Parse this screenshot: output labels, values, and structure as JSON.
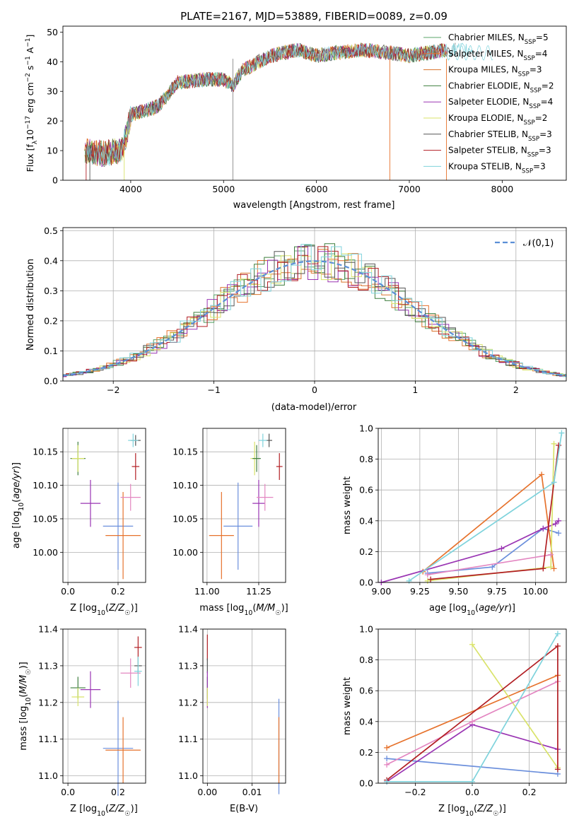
{
  "chart_data": [
    {
      "type": "line",
      "title": "PLATE=2167, MJD=53889, FIBERID=0089, z=0.09",
      "xlabel": "wavelength [Angstrom, rest frame]",
      "ylabel": "Flux [f_λ 10^-17 erg cm^-2 s^-1 A^-1]",
      "xlim": [
        3270,
        8690
      ],
      "ylim": [
        0,
        52
      ],
      "xticks": [
        4000,
        5000,
        6000,
        7000,
        8000
      ],
      "yticks": [
        0,
        10,
        20,
        30,
        40,
        50
      ],
      "grid": false,
      "legend_position": "top-right",
      "spectrum_shape": {
        "x": [
          3500,
          3700,
          3900,
          3960,
          4000,
          4200,
          4300,
          4500,
          4800,
          5000,
          5100,
          5200,
          5500,
          5800,
          6000,
          6200,
          6500,
          6800,
          7000,
          7200,
          7400
        ],
        "y": [
          10,
          9,
          10,
          16,
          22,
          24,
          25,
          33,
          34,
          34,
          32,
          37,
          42,
          44,
          42,
          43,
          44,
          43,
          42,
          43,
          44
        ]
      },
      "series": [
        {
          "name": "Chabrier MILES, N_SSP=5",
          "color": "#5aa469"
        },
        {
          "name": "Salpeter MILES, N_SSP=4",
          "color": "#e6722c"
        },
        {
          "name": "Kroupa MILES, N_SSP=3",
          "color": "#d9732b"
        },
        {
          "name": "Chabrier ELODIE, N_SSP=2",
          "color": "#3f7f3f"
        },
        {
          "name": "Salpeter ELODIE, N_SSP=4",
          "color": "#9a35b3"
        },
        {
          "name": "Kroupa ELODIE, N_SSP=2",
          "color": "#d9e36a"
        },
        {
          "name": "Chabrier STELIB, N_SSP=3",
          "color": "#555555"
        },
        {
          "name": "Salpeter STELIB, N_SSP=3",
          "color": "#b21f24"
        },
        {
          "name": "Kroupa STELIB, N_SSP=3",
          "color": "#7fd3dc"
        }
      ],
      "legend_labels": [
        {
          "name": "Chabrier MILES, N",
          "sub": "SSP",
          "value": "=5"
        },
        {
          "name": "Salpeter MILES, N",
          "sub": "SSP",
          "value": "=4"
        },
        {
          "name": "Kroupa MILES, N",
          "sub": "SSP",
          "value": "=3"
        },
        {
          "name": "Chabrier ELODIE, N",
          "sub": "SSP",
          "value": "=2"
        },
        {
          "name": "Salpeter ELODIE, N",
          "sub": "SSP",
          "value": "=4"
        },
        {
          "name": "Kroupa ELODIE, N",
          "sub": "SSP",
          "value": "=2"
        },
        {
          "name": "Chabrier STELIB, N",
          "sub": "SSP",
          "value": "=3"
        },
        {
          "name": "Salpeter STELIB, N",
          "sub": "SSP",
          "value": "=3"
        },
        {
          "name": "Kroupa STELIB, N",
          "sub": "SSP",
          "value": "=3"
        }
      ]
    },
    {
      "type": "line",
      "xlabel": "(data-model)/error",
      "ylabel": "Normed distribution",
      "xlim": [
        -2.5,
        2.5
      ],
      "ylim": [
        0,
        0.51
      ],
      "xticks": [
        -2,
        -1,
        0,
        1,
        2
      ],
      "yticks": [
        0.0,
        0.1,
        0.2,
        0.3,
        0.4,
        0.5
      ],
      "grid": true,
      "legend_position": "top-right",
      "legend": "𝒩(0,1)",
      "reference_curve": "N(0,1)",
      "histogram_series_colors": [
        "#5aa469",
        "#e6722c",
        "#d9732b",
        "#3f7f3f",
        "#9a35b3",
        "#d9e36a",
        "#555555",
        "#b21f24",
        "#7fd3dc"
      ]
    },
    {
      "type": "scatter",
      "xlabel": "Z [log10(Z/Z☉)]",
      "ylabel": "age [log10(age/yr)]",
      "xlim": [
        -0.02,
        0.31
      ],
      "ylim": [
        9.955,
        10.185
      ],
      "xticks": [
        0.0,
        0.2
      ],
      "yticks": [
        10.0,
        10.05,
        10.1,
        10.15
      ],
      "grid": true,
      "points": [
        {
          "x": 0.04,
          "y": 10.14,
          "xerr": 0.03,
          "yerr": 0.025,
          "color": "#3f7f3f"
        },
        {
          "x": 0.04,
          "y": 10.14,
          "xerr": 0.025,
          "yerr": 0.02,
          "color": "#d9e36a"
        },
        {
          "x": 0.09,
          "y": 10.073,
          "xerr": 0.04,
          "yerr": 0.035,
          "color": "#9a35b3"
        },
        {
          "x": 0.2,
          "y": 10.039,
          "xerr": 0.06,
          "yerr": 0.065,
          "color": "#6b8fdc"
        },
        {
          "x": 0.22,
          "y": 10.025,
          "xerr": 0.07,
          "yerr": 0.065,
          "color": "#e6722c"
        },
        {
          "x": 0.25,
          "y": 10.082,
          "xerr": 0.04,
          "yerr": 0.02,
          "color": "#e386c1"
        },
        {
          "x": 0.27,
          "y": 10.128,
          "xerr": 0.015,
          "yerr": 0.02,
          "color": "#b21f24"
        },
        {
          "x": 0.27,
          "y": 10.167,
          "xerr": 0.02,
          "yerr": 0.008,
          "color": "#555555"
        },
        {
          "x": 0.26,
          "y": 10.167,
          "xerr": 0.02,
          "yerr": 0.01,
          "color": "#7fd3dc"
        }
      ]
    },
    {
      "type": "scatter",
      "xlabel": "mass [log10(M/M☉)]",
      "ylim": [
        9.955,
        10.185
      ],
      "xlim": [
        10.98,
        11.38
      ],
      "xticks": [
        11.0,
        11.25
      ],
      "yticks": [
        10.0,
        10.05,
        10.1,
        10.15
      ],
      "grid": true,
      "points": [
        {
          "x": 11.07,
          "y": 10.025,
          "xerr": 0.06,
          "yerr": 0.065,
          "color": "#e6722c"
        },
        {
          "x": 11.15,
          "y": 10.039,
          "xerr": 0.07,
          "yerr": 0.065,
          "color": "#6b8fdc"
        },
        {
          "x": 11.23,
          "y": 10.14,
          "xerr": 0.02,
          "yerr": 0.025,
          "color": "#d9e36a"
        },
        {
          "x": 11.24,
          "y": 10.14,
          "xerr": 0.02,
          "yerr": 0.02,
          "color": "#3f7f3f"
        },
        {
          "x": 11.25,
          "y": 10.073,
          "xerr": 0.03,
          "yerr": 0.035,
          "color": "#9a35b3"
        },
        {
          "x": 11.28,
          "y": 10.082,
          "xerr": 0.04,
          "yerr": 0.02,
          "color": "#e386c1"
        },
        {
          "x": 11.3,
          "y": 10.167,
          "xerr": 0.015,
          "yerr": 0.01,
          "color": "#555555"
        },
        {
          "x": 11.35,
          "y": 10.128,
          "xerr": 0.015,
          "yerr": 0.02,
          "color": "#b21f24"
        },
        {
          "x": 11.27,
          "y": 10.167,
          "xerr": 0.02,
          "yerr": 0.01,
          "color": "#7fd3dc"
        }
      ]
    },
    {
      "type": "line",
      "xlabel": "age [log10(age/yr)]",
      "ylabel": "mass weight",
      "xlim": [
        8.98,
        10.2
      ],
      "ylim": [
        0,
        1.0
      ],
      "xticks": [
        9.0,
        9.25,
        9.5,
        9.75,
        10.0
      ],
      "yticks": [
        0.0,
        0.2,
        0.4,
        0.6,
        0.8,
        1.0
      ],
      "grid": true,
      "series": [
        {
          "color": "#6b8fdc",
          "x": [
            9.3,
            9.72,
            10.05,
            10.15
          ],
          "y": [
            0.06,
            0.1,
            0.35,
            0.32
          ]
        },
        {
          "color": "#e6722c",
          "x": [
            9.27,
            10.04,
            10.12
          ],
          "y": [
            0.07,
            0.7,
            0.09
          ]
        },
        {
          "color": "#9a35b3",
          "x": [
            9.0,
            9.78,
            10.05,
            10.13,
            10.15
          ],
          "y": [
            0.0,
            0.22,
            0.35,
            0.38,
            0.4
          ]
        },
        {
          "color": "#d9e36a",
          "x": [
            9.3,
            10.1,
            10.12
          ],
          "y": [
            0.01,
            0.1,
            0.9
          ]
        },
        {
          "color": "#e386c1",
          "x": [
            9.3,
            10.1
          ],
          "y": [
            0.05,
            0.18
          ]
        },
        {
          "color": "#b21f24",
          "x": [
            9.32,
            10.05,
            10.15
          ],
          "y": [
            0.02,
            0.09,
            0.89
          ]
        },
        {
          "color": "#7fd3dc",
          "x": [
            9.18,
            10.12,
            10.17
          ],
          "y": [
            0.01,
            0.65,
            0.97
          ]
        }
      ]
    },
    {
      "type": "scatter",
      "xlabel": "Z [log10(Z/Z☉)]",
      "ylabel": "mass [log10(M/M☉)]",
      "xlim": [
        -0.02,
        0.31
      ],
      "ylim": [
        10.98,
        11.4
      ],
      "xticks": [
        0.0,
        0.2
      ],
      "yticks": [
        11.0,
        11.1,
        11.2,
        11.3,
        11.4
      ],
      "grid": true,
      "points": [
        {
          "x": 0.04,
          "y": 11.24,
          "xerr": 0.03,
          "yerr": 0.03,
          "color": "#3f7f3f"
        },
        {
          "x": 0.04,
          "y": 11.215,
          "xerr": 0.025,
          "yerr": 0.025,
          "color": "#d9e36a"
        },
        {
          "x": 0.09,
          "y": 11.235,
          "xerr": 0.04,
          "yerr": 0.05,
          "color": "#9a35b3"
        },
        {
          "x": 0.2,
          "y": 11.075,
          "xerr": 0.06,
          "yerr": 0.13,
          "color": "#6b8fdc"
        },
        {
          "x": 0.22,
          "y": 11.07,
          "xerr": 0.07,
          "yerr": 0.09,
          "color": "#e6722c"
        },
        {
          "x": 0.25,
          "y": 11.28,
          "xerr": 0.04,
          "yerr": 0.04,
          "color": "#e386c1"
        },
        {
          "x": 0.28,
          "y": 11.35,
          "xerr": 0.015,
          "yerr": 0.03,
          "color": "#b21f24"
        },
        {
          "x": 0.28,
          "y": 11.3,
          "xerr": 0.015,
          "yerr": 0.02,
          "color": "#555555"
        },
        {
          "x": 0.28,
          "y": 11.285,
          "xerr": 0.015,
          "yerr": 0.04,
          "color": "#7fd3dc"
        }
      ]
    },
    {
      "type": "scatter",
      "xlabel": "E(B-V)",
      "xlim": [
        -0.001,
        0.0175
      ],
      "ylim": [
        10.98,
        11.4
      ],
      "xticks": [
        0.0,
        0.01
      ],
      "yticks": [
        11.0,
        11.1,
        11.2,
        11.3,
        11.4
      ],
      "grid": true,
      "points": [
        {
          "x": 0.0,
          "y": 11.35,
          "xerr": 0,
          "yerr": 0.035,
          "color": "#b21f24"
        },
        {
          "x": 0.0,
          "y": 11.3,
          "xerr": 0,
          "yerr": 0.02,
          "color": "#555555"
        },
        {
          "x": 0.0,
          "y": 11.24,
          "xerr": 0,
          "yerr": 0.03,
          "color": "#3f7f3f"
        },
        {
          "x": 0.0,
          "y": 11.235,
          "xerr": 0,
          "yerr": 0.05,
          "color": "#9a35b3"
        },
        {
          "x": 0.0,
          "y": 11.215,
          "xerr": 0,
          "yerr": 0.025,
          "color": "#d9e36a"
        },
        {
          "x": 0.016,
          "y": 11.08,
          "xerr": 0,
          "yerr": 0.13,
          "color": "#6b8fdc"
        },
        {
          "x": 0.016,
          "y": 11.07,
          "xerr": 0,
          "yerr": 0.09,
          "color": "#e6722c"
        }
      ]
    },
    {
      "type": "line",
      "xlabel": "Z [log10(Z/Z☉)]",
      "ylabel": "mass weight",
      "xlim": [
        -0.33,
        0.33
      ],
      "ylim": [
        0,
        1.0
      ],
      "xticks": [
        -0.2,
        0.0,
        0.2
      ],
      "yticks": [
        0.0,
        0.2,
        0.4,
        0.6,
        0.8,
        1.0
      ],
      "grid": true,
      "series": [
        {
          "color": "#6b8fdc",
          "x": [
            -0.3,
            0.3
          ],
          "y": [
            0.16,
            0.06
          ]
        },
        {
          "color": "#e6722c",
          "x": [
            -0.3,
            0.3
          ],
          "y": [
            0.23,
            0.7
          ]
        },
        {
          "color": "#9a35b3",
          "x": [
            -0.3,
            0.0,
            0.3
          ],
          "y": [
            0.01,
            0.38,
            0.22
          ]
        },
        {
          "color": "#d9e36a",
          "x": [
            0.0,
            0.3
          ],
          "y": [
            0.9,
            0.1
          ]
        },
        {
          "color": "#e386c1",
          "x": [
            -0.3,
            0.0,
            0.3
          ],
          "y": [
            0.12,
            0.4,
            0.66
          ]
        },
        {
          "color": "#b21f24",
          "x": [
            -0.3,
            0.3,
            0.3
          ],
          "y": [
            0.02,
            0.89,
            0.09
          ]
        },
        {
          "color": "#7fd3dc",
          "x": [
            -0.3,
            0.0,
            0.3
          ],
          "y": [
            0.01,
            0.01,
            0.97
          ]
        }
      ]
    }
  ]
}
